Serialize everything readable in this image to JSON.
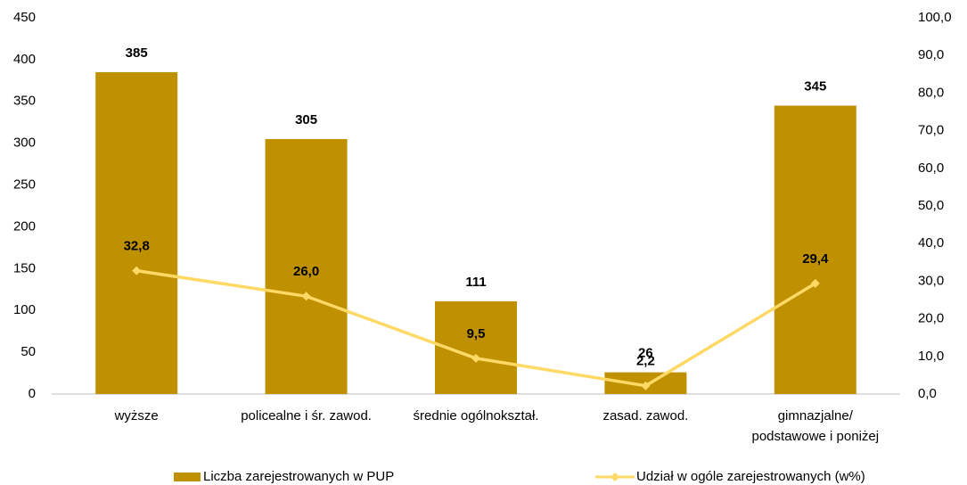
{
  "chart_data": {
    "type": "bar_line",
    "categories": [
      "wyższe",
      "policealne i śr. zawod.",
      "średnie ogólnokształ.",
      "zasad. zawod.",
      "gimnazjalne/\npodstawowe i poniżej"
    ],
    "series": [
      {
        "name": "Liczba zarejestrowanych w PUP",
        "type": "bar",
        "color": "#bf9000",
        "axis": "y",
        "values": [
          385,
          305,
          111,
          26,
          345
        ]
      },
      {
        "name": "Udział w ogóle zarejestrowanych (w%)",
        "type": "line",
        "color": "#ffd966",
        "axis": "y2",
        "values": [
          32.8,
          26.0,
          9.5,
          2.2,
          29.4
        ],
        "value_labels": [
          "32,8",
          "26,0",
          "9,5",
          "2,2",
          "29,4"
        ]
      }
    ],
    "ylim": [
      0,
      450
    ],
    "yticks": [
      0,
      50,
      100,
      150,
      200,
      250,
      300,
      350,
      400,
      450
    ],
    "y2lim": [
      0,
      100
    ],
    "y2ticks": [
      {
        "value": 0,
        "label": "0,0"
      },
      {
        "value": 10,
        "label": "10,0"
      },
      {
        "value": 20,
        "label": "20,0"
      },
      {
        "value": 30,
        "label": "30,0"
      },
      {
        "value": 40,
        "label": "40,0"
      },
      {
        "value": 50,
        "label": "50,0"
      },
      {
        "value": 60,
        "label": "60,0"
      },
      {
        "value": 70,
        "label": "70,0"
      },
      {
        "value": 80,
        "label": "80,0"
      },
      {
        "value": 90,
        "label": "90,0"
      },
      {
        "value": 100,
        "label": "100,0"
      }
    ],
    "legend": "bottom"
  }
}
